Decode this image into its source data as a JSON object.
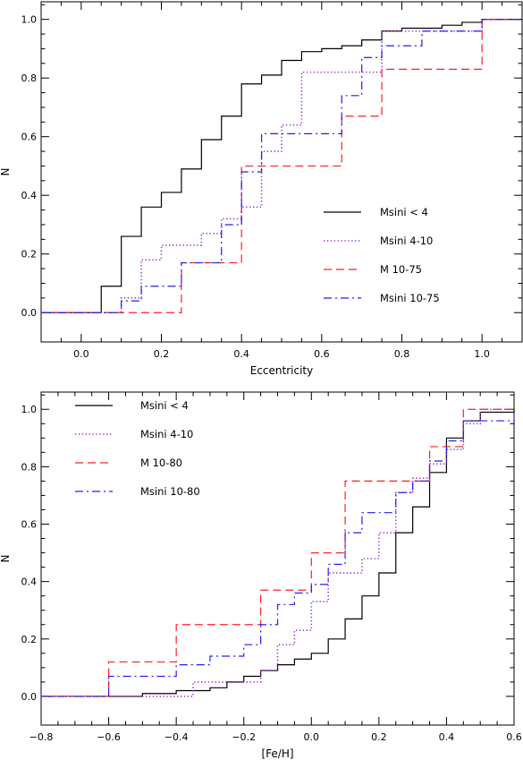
{
  "chart_data": [
    {
      "type": "line",
      "subtype": "step-cdf",
      "xlabel": "Eccentricity",
      "ylabel": "N",
      "xlim": [
        -0.1,
        1.1
      ],
      "ylim": [
        -0.1,
        1.06
      ],
      "xticks": [
        0.0,
        0.2,
        0.4,
        0.6,
        0.8,
        1.0
      ],
      "xtick_labels": [
        "0.0",
        "0.2",
        "0.4",
        "0.6",
        "0.8",
        "1.0"
      ],
      "yticks": [
        0.0,
        0.2,
        0.4,
        0.6,
        0.8,
        1.0
      ],
      "ytick_labels": [
        "0.0",
        "0.2",
        "0.4",
        "0.6",
        "0.8",
        "1.0"
      ],
      "legend_position": "center-right",
      "series": [
        {
          "name": "Msini < 4",
          "color": "#000000",
          "dash": "solid",
          "x": [
            -0.1,
            0.05,
            0.1,
            0.15,
            0.2,
            0.25,
            0.3,
            0.35,
            0.4,
            0.45,
            0.5,
            0.55,
            0.6,
            0.65,
            0.7,
            0.75,
            0.8,
            0.9,
            0.95,
            1.0,
            1.1
          ],
          "y": [
            0.0,
            0.09,
            0.26,
            0.36,
            0.41,
            0.49,
            0.59,
            0.67,
            0.78,
            0.81,
            0.86,
            0.89,
            0.9,
            0.91,
            0.93,
            0.96,
            0.97,
            0.98,
            0.99,
            1.0,
            1.0
          ]
        },
        {
          "name": "Msini 4-10",
          "color": "#9933cc",
          "dash": "dotted",
          "x": [
            -0.1,
            0.1,
            0.15,
            0.2,
            0.3,
            0.35,
            0.4,
            0.45,
            0.5,
            0.55,
            0.65,
            0.75,
            0.85,
            1.0,
            1.1
          ],
          "y": [
            0.0,
            0.05,
            0.18,
            0.23,
            0.27,
            0.32,
            0.36,
            0.55,
            0.64,
            0.82,
            0.82,
            0.96,
            0.96,
            1.0,
            1.0
          ]
        },
        {
          "name": "M 10-75",
          "color": "#ff2020",
          "dash": "dashed",
          "x": [
            -0.1,
            0.25,
            0.4,
            0.65,
            0.75,
            1.0,
            1.1
          ],
          "y": [
            0.0,
            0.17,
            0.5,
            0.67,
            0.83,
            1.0,
            1.0
          ]
        },
        {
          "name": "Msini 10-75",
          "color": "#2020ee",
          "dash": "dashdot",
          "x": [
            -0.1,
            0.1,
            0.15,
            0.25,
            0.35,
            0.4,
            0.45,
            0.65,
            0.7,
            0.75,
            0.8,
            0.85,
            1.0,
            1.1
          ],
          "y": [
            0.0,
            0.04,
            0.09,
            0.17,
            0.3,
            0.48,
            0.61,
            0.74,
            0.87,
            0.91,
            0.91,
            0.96,
            1.0,
            1.0
          ]
        }
      ]
    },
    {
      "type": "line",
      "subtype": "step-cdf",
      "xlabel": "[Fe/H]",
      "ylabel": "N",
      "xlim": [
        -0.8,
        0.6
      ],
      "ylim": [
        -0.1,
        1.06
      ],
      "xticks": [
        -0.8,
        -0.6,
        -0.4,
        -0.2,
        0.0,
        0.2,
        0.4,
        0.6
      ],
      "xtick_labels": [
        "−0.8",
        "−0.6",
        "−0.4",
        "−0.2",
        "0.0",
        "0.2",
        "0.4",
        "0.6"
      ],
      "yticks": [
        0.0,
        0.2,
        0.4,
        0.6,
        0.8,
        1.0
      ],
      "ytick_labels": [
        "0.0",
        "0.2",
        "0.4",
        "0.6",
        "0.8",
        "1.0"
      ],
      "legend_position": "top-left",
      "series": [
        {
          "name": "Msini < 4",
          "color": "#000000",
          "dash": "solid",
          "x": [
            -0.8,
            -0.5,
            -0.4,
            -0.3,
            -0.25,
            -0.2,
            -0.15,
            -0.1,
            -0.05,
            0.0,
            0.05,
            0.1,
            0.15,
            0.2,
            0.25,
            0.3,
            0.35,
            0.4,
            0.45,
            0.5,
            0.6
          ],
          "y": [
            0.0,
            0.01,
            0.02,
            0.03,
            0.05,
            0.07,
            0.09,
            0.11,
            0.13,
            0.15,
            0.2,
            0.27,
            0.35,
            0.43,
            0.57,
            0.66,
            0.78,
            0.9,
            0.96,
            0.99,
            1.0
          ]
        },
        {
          "name": "Msini 4-10",
          "color": "#9933cc",
          "dash": "dotted",
          "x": [
            -0.8,
            -0.6,
            -0.4,
            -0.35,
            -0.25,
            -0.2,
            -0.15,
            -0.1,
            -0.05,
            0.0,
            0.05,
            0.1,
            0.15,
            0.2,
            0.25,
            0.3,
            0.35,
            0.4,
            0.45,
            0.5,
            0.6
          ],
          "y": [
            0.0,
            0.0,
            0.0,
            0.05,
            0.05,
            0.05,
            0.09,
            0.18,
            0.23,
            0.33,
            0.43,
            0.43,
            0.48,
            0.57,
            0.71,
            0.76,
            0.81,
            0.86,
            0.95,
            1.0,
            1.0
          ]
        },
        {
          "name": "M 10-80",
          "color": "#ff2020",
          "dash": "dashed",
          "x": [
            -0.8,
            -0.6,
            -0.4,
            -0.15,
            0.0,
            0.1,
            0.35,
            0.45,
            0.6
          ],
          "y": [
            0.0,
            0.12,
            0.25,
            0.37,
            0.5,
            0.75,
            0.87,
            1.0,
            1.0
          ]
        },
        {
          "name": "Msini 10-80",
          "color": "#2020ee",
          "dash": "dashdot",
          "x": [
            -0.8,
            -0.6,
            -0.4,
            -0.3,
            -0.2,
            -0.15,
            -0.1,
            -0.05,
            0.0,
            0.05,
            0.1,
            0.15,
            0.25,
            0.3,
            0.35,
            0.4,
            0.45,
            0.6
          ],
          "y": [
            0.0,
            0.07,
            0.11,
            0.14,
            0.18,
            0.25,
            0.32,
            0.36,
            0.39,
            0.46,
            0.57,
            0.64,
            0.71,
            0.75,
            0.82,
            0.89,
            0.96,
            1.0
          ]
        }
      ]
    }
  ]
}
